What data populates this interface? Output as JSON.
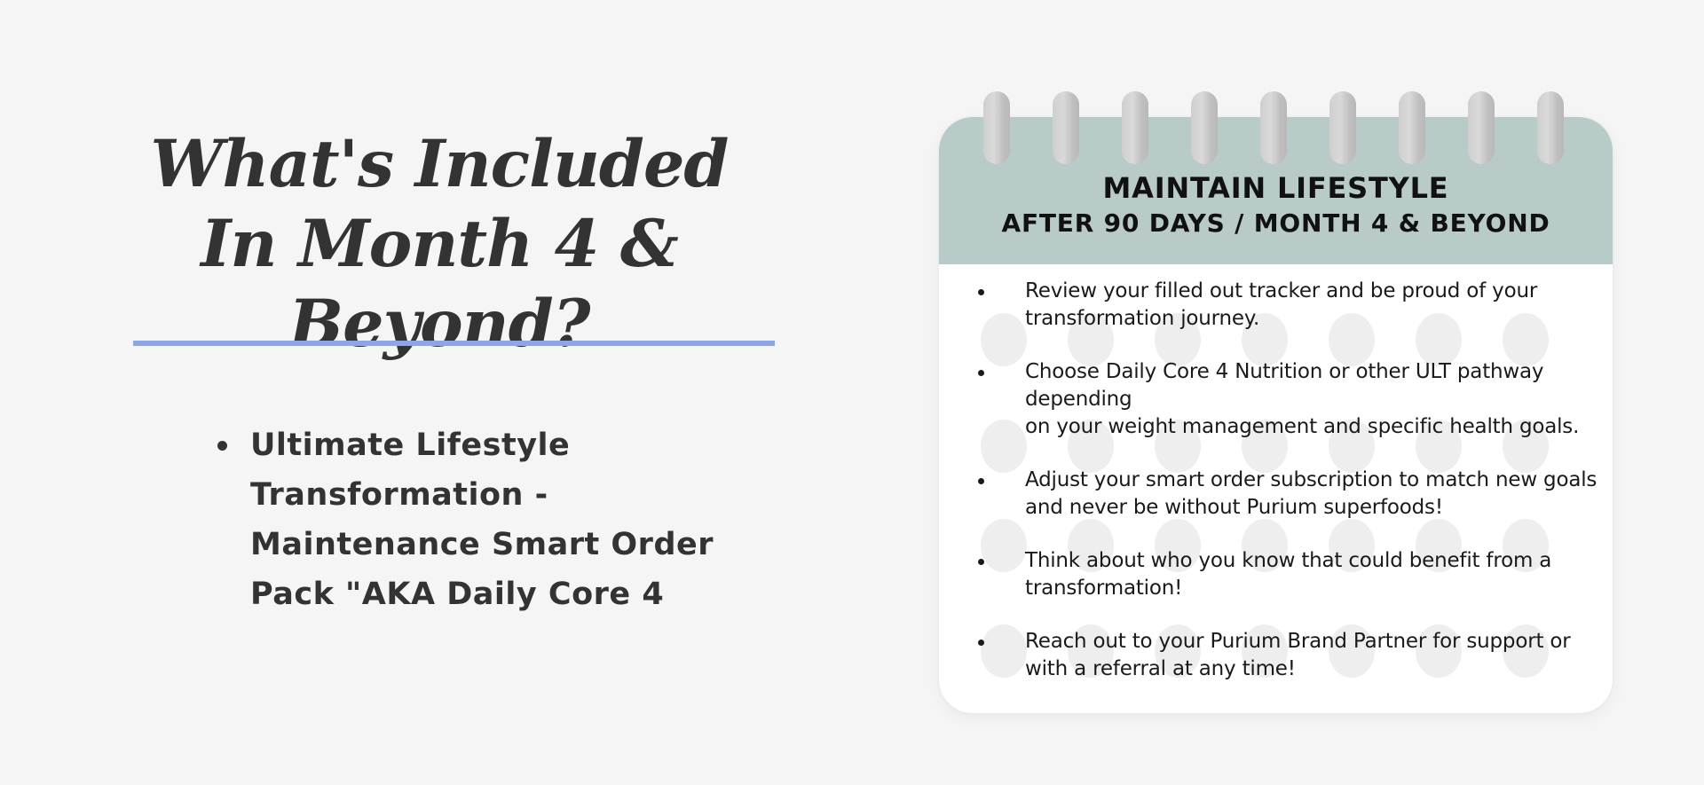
{
  "headline": {
    "line1": "What's Included",
    "line2": "In Month 4 & Beyond?"
  },
  "pack_list": {
    "items": [
      {
        "lines": [
          "Ultimate Lifestyle",
          "Transformation -",
          "Maintenance Smart Order",
          "Pack \"AKA Daily Core 4"
        ]
      }
    ]
  },
  "calendar": {
    "title": "MAINTAIN LIFESTYLE",
    "subtitle": "AFTER 90 DAYS / MONTH 4 & BEYOND",
    "ring_count": 9,
    "tips": [
      {
        "lines": [
          "Review your filled out tracker and be proud of your",
          "transformation journey."
        ]
      },
      {
        "lines": [
          "Choose Daily Core 4 Nutrition or other ULT pathway",
          "depending",
          "on your weight management and specific health goals."
        ]
      },
      {
        "lines": [
          "Adjust your smart order subscription to match new goals",
          "and never be without Purium superfoods!"
        ]
      },
      {
        "lines": [
          "Think about who you know that could benefit from a",
          "transformation!"
        ]
      },
      {
        "lines": [
          "Reach out to your Purium Brand Partner for support or",
          "with a referral at any time!"
        ]
      }
    ]
  },
  "colors": {
    "background": "#f5f5f5",
    "divider": "#8fa5ea",
    "calendar_header": "#b8cbc9",
    "text_dark": "#333333"
  }
}
